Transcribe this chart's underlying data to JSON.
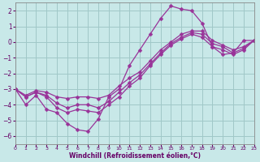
{
  "background_color": "#c8e8e8",
  "grid_color": "#a0c8c8",
  "line_color": "#993399",
  "marker_color": "#993399",
  "xlabel": "Windchill (Refroidissement éolien,°C)",
  "xlabel_color": "#660066",
  "tick_color": "#660066",
  "xlim": [
    0,
    23
  ],
  "ylim": [
    -6.5,
    2.5
  ],
  "yticks": [
    -6,
    -5,
    -4,
    -3,
    -2,
    -1,
    0,
    1,
    2
  ],
  "xticks": [
    0,
    1,
    2,
    3,
    4,
    5,
    6,
    7,
    8,
    9,
    10,
    11,
    12,
    13,
    14,
    15,
    16,
    17,
    18,
    19,
    20,
    21,
    22,
    23
  ],
  "series": [
    [
      -3.0,
      -4.0,
      -3.4,
      -4.3,
      -4.5,
      -5.2,
      -5.6,
      -5.7,
      -4.9,
      -3.5,
      -3.0,
      -1.5,
      -0.5,
      0.5,
      1.5,
      2.3,
      2.1,
      2.0,
      1.2,
      -0.3,
      -0.8,
      -0.7,
      0.1,
      0.1
    ],
    [
      -3.0,
      -3.5,
      -3.2,
      -3.5,
      -4.2,
      -4.5,
      -4.3,
      -4.4,
      -4.5,
      -4.0,
      -3.5,
      -2.8,
      -2.3,
      -1.5,
      -0.8,
      -0.2,
      0.2,
      0.5,
      0.3,
      -0.3,
      -0.5,
      -0.8,
      -0.5,
      0.1
    ],
    [
      -3.0,
      -3.5,
      -3.2,
      -3.4,
      -3.9,
      -4.2,
      -4.0,
      -4.0,
      -4.2,
      -3.8,
      -3.2,
      -2.6,
      -2.1,
      -1.4,
      -0.7,
      -0.1,
      0.3,
      0.6,
      0.5,
      -0.1,
      -0.3,
      -0.7,
      -0.4,
      0.1
    ],
    [
      -3.0,
      -3.4,
      -3.1,
      -3.2,
      -3.5,
      -3.6,
      -3.5,
      -3.5,
      -3.6,
      -3.4,
      -2.8,
      -2.3,
      -1.9,
      -1.2,
      -0.5,
      0.0,
      0.5,
      0.7,
      0.7,
      0.1,
      -0.2,
      -0.5,
      -0.3,
      0.1
    ]
  ]
}
